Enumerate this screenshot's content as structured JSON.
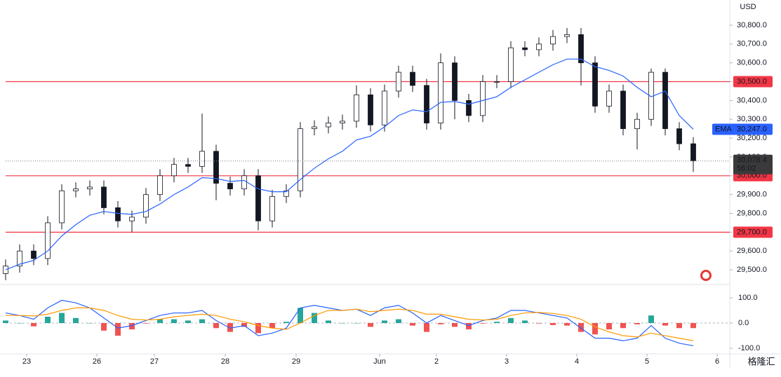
{
  "chart_data": [
    {
      "type": "candlestick",
      "currency": "USD",
      "x": [
        -0.3,
        -0.1,
        0.1,
        0.3,
        0.5,
        0.7,
        0.9,
        1.1,
        1.3,
        1.5,
        1.7,
        1.9,
        2.1,
        2.3,
        2.5,
        2.7,
        2.9,
        3.1,
        3.3,
        3.5,
        3.7,
        3.9,
        4.1,
        4.3,
        4.5,
        4.7,
        4.9,
        5.1,
        5.3,
        5.5,
        5.7,
        5.9,
        6.1,
        6.3,
        6.5,
        6.7,
        6.9,
        7.1,
        7.3,
        7.5,
        7.7,
        7.9,
        8.1,
        8.3,
        8.5,
        8.7,
        8.9,
        9.1,
        9.3,
        9.5
      ],
      "open": [
        29480,
        29520,
        29600,
        29560,
        29750,
        29920,
        29930,
        29940,
        29830,
        29760,
        29780,
        29900,
        30000,
        30060,
        30050,
        30130,
        29960,
        29930,
        30000,
        29760,
        29890,
        29920,
        30250,
        30260,
        30280,
        30290,
        30430,
        30270,
        30450,
        30550,
        30480,
        30280,
        30600,
        30400,
        30320,
        30500,
        30500,
        30680,
        30670,
        30700,
        30740,
        30750,
        30600,
        30370,
        30450,
        30250,
        30300,
        30550,
        30250,
        30170
      ],
      "high": [
        29555,
        29635,
        29635,
        29785,
        29955,
        29965,
        29975,
        29975,
        29865,
        29815,
        29935,
        30035,
        30095,
        30095,
        30330,
        30165,
        29995,
        30035,
        30035,
        29925,
        29955,
        30285,
        30295,
        30315,
        30325,
        30480,
        30465,
        30485,
        30585,
        30585,
        30515,
        30650,
        30635,
        30435,
        30535,
        30535,
        30715,
        30715,
        30735,
        30775,
        30785,
        30785,
        30635,
        30485,
        30485,
        30335,
        30570,
        30570,
        30285,
        30205
      ],
      "low": [
        29445,
        29485,
        29525,
        29525,
        29715,
        29885,
        29895,
        29795,
        29725,
        29700,
        29745,
        29865,
        29965,
        30015,
        30015,
        29870,
        29895,
        29895,
        29710,
        29725,
        29855,
        29885,
        30215,
        30225,
        30245,
        30255,
        30235,
        30235,
        30415,
        30445,
        30245,
        30245,
        30300,
        30285,
        30285,
        30465,
        30465,
        30635,
        30635,
        30665,
        30705,
        30480,
        30335,
        30335,
        30215,
        30140,
        30265,
        30215,
        30135,
        30020
      ],
      "close": [
        29520,
        29600,
        29560,
        29750,
        29920,
        29930,
        29940,
        29830,
        29760,
        29780,
        29900,
        30000,
        30060,
        30050,
        30130,
        29960,
        29930,
        30000,
        29760,
        29890,
        29920,
        30250,
        30260,
        30280,
        30290,
        30430,
        30270,
        30450,
        30550,
        30480,
        30280,
        30600,
        30400,
        30320,
        30500,
        30500,
        30680,
        30670,
        30700,
        30740,
        30750,
        30600,
        30370,
        30450,
        30250,
        30300,
        30550,
        30250,
        30170,
        30080
      ],
      "up_color": "#ffffff",
      "down_color": "#131722",
      "wick_color": "#131722",
      "ema": {
        "name": "EMA",
        "color": "#2962ff",
        "last": {
          "value": 30247,
          "label": "30,247.0"
        },
        "values": [
          29500,
          29530,
          29550,
          29600,
          29680,
          29740,
          29790,
          29810,
          29800,
          29795,
          29810,
          29850,
          29900,
          29940,
          29990,
          29985,
          29970,
          29975,
          29930,
          29915,
          29915,
          29980,
          30040,
          30090,
          30130,
          30190,
          30210,
          30260,
          30320,
          30350,
          30340,
          30390,
          30395,
          30380,
          30400,
          30420,
          30470,
          30510,
          30550,
          30590,
          30620,
          30620,
          30580,
          30560,
          30530,
          30470,
          30420,
          30450,
          30320,
          30247
        ]
      },
      "levels": [
        {
          "value": 30500,
          "label": "30,500.0"
        },
        {
          "value": 30000,
          "label": "30,000.0"
        },
        {
          "value": 29700,
          "label": "29,700.0"
        }
      ],
      "level_color": "#f23645",
      "last_price": {
        "value": 30078.4,
        "label": "30,078.4",
        "countdown": "56:02"
      },
      "xlim": [
        -0.38,
        10.02
      ],
      "ylim": [
        29422,
        30934
      ],
      "xticks": [
        {
          "value": 0,
          "label": "23"
        },
        {
          "value": 1,
          "label": "26"
        },
        {
          "value": 1.82,
          "label": "27"
        },
        {
          "value": 2.83,
          "label": "28"
        },
        {
          "value": 3.84,
          "label": "29"
        },
        {
          "value": 5.03,
          "label": "Jun"
        },
        {
          "value": 5.84,
          "label": "2"
        },
        {
          "value": 6.84,
          "label": "3"
        },
        {
          "value": 7.84,
          "label": "4"
        },
        {
          "value": 8.84,
          "label": "5"
        },
        {
          "value": 9.84,
          "label": "6"
        }
      ],
      "yticks": [
        {
          "value": 29500,
          "label": "29,500.0"
        },
        {
          "value": 29600,
          "label": "29,600.0"
        },
        {
          "value": 29700,
          "label": "29,700.0"
        },
        {
          "value": 29800,
          "label": "29,800.0"
        },
        {
          "value": 29900,
          "label": "29,900.0"
        },
        {
          "value": 30000,
          "label": "30,000.0"
        },
        {
          "value": 30100,
          "label": "30,100.0"
        },
        {
          "value": 30200,
          "label": "30,200.0"
        },
        {
          "value": 30300,
          "label": "30,300.0"
        },
        {
          "value": 30400,
          "label": "30,400.0"
        },
        {
          "value": 30500,
          "label": "30,500.0"
        },
        {
          "value": 30600,
          "label": "30,600.0"
        },
        {
          "value": 30700,
          "label": "30,700.0"
        },
        {
          "value": 30800,
          "label": "30,800.0"
        }
      ]
    },
    {
      "type": "macd",
      "ylim": [
        -122,
        147
      ],
      "yticks": [
        {
          "value": 100,
          "label": "100.0"
        },
        {
          "value": 0,
          "label": "0.0"
        },
        {
          "value": -100,
          "label": "-100.0"
        }
      ],
      "series": [
        {
          "color": "#2962ff",
          "values": [
            40,
            30,
            15,
            60,
            90,
            80,
            60,
            20,
            -20,
            -10,
            10,
            30,
            40,
            40,
            50,
            10,
            -20,
            -10,
            -50,
            -40,
            -20,
            60,
            70,
            60,
            50,
            55,
            30,
            60,
            70,
            40,
            0,
            30,
            10,
            -10,
            10,
            20,
            50,
            50,
            40,
            30,
            20,
            -20,
            -60,
            -60,
            -70,
            -60,
            -10,
            -60,
            -80,
            -90
          ]
        },
        {
          "color": "#ff9800",
          "values": [
            30,
            30,
            28,
            35,
            50,
            60,
            60,
            50,
            30,
            15,
            12,
            15,
            25,
            30,
            35,
            30,
            15,
            5,
            -10,
            -20,
            -25,
            0,
            30,
            50,
            50,
            55,
            45,
            50,
            55,
            50,
            35,
            35,
            25,
            15,
            12,
            15,
            30,
            40,
            42,
            38,
            30,
            15,
            -15,
            -35,
            -50,
            -55,
            -40,
            -50,
            -60,
            -70
          ]
        }
      ],
      "histogram": {
        "up_color": "#26a69a",
        "down_color": "#ef5350",
        "values": [
          10,
          0,
          -13,
          25,
          40,
          20,
          0,
          -30,
          -50,
          -25,
          -2,
          15,
          15,
          10,
          15,
          -20,
          -35,
          -15,
          -40,
          -20,
          5,
          60,
          40,
          10,
          0,
          0,
          -15,
          10,
          15,
          -10,
          -35,
          -5,
          -15,
          -25,
          -2,
          5,
          20,
          10,
          -2,
          -8,
          -10,
          -35,
          -45,
          -25,
          -20,
          -5,
          30,
          -10,
          -20,
          -20
        ]
      }
    }
  ],
  "watermark": "格隆汇"
}
